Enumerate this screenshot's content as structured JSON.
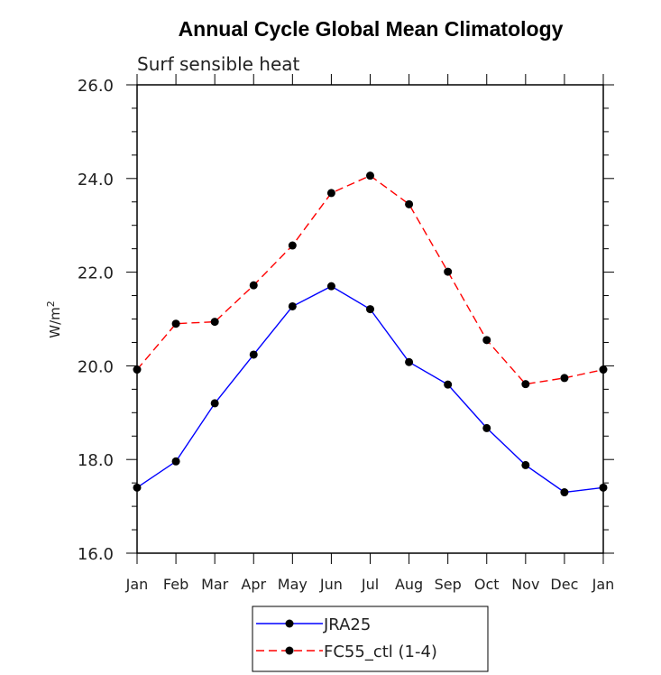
{
  "chart_data": {
    "type": "line",
    "title": "Annual Cycle Global Mean Climatology",
    "subtitle": "Surf sensible heat",
    "ylabel": "W/m",
    "ylabel_superscript": "2",
    "xlabel": "",
    "ylim": [
      16.0,
      26.0
    ],
    "y_ticks": [
      "16.0",
      "18.0",
      "20.0",
      "22.0",
      "24.0",
      "26.0"
    ],
    "categories": [
      "Jan",
      "Feb",
      "Mar",
      "Apr",
      "May",
      "Jun",
      "Jul",
      "Aug",
      "Sep",
      "Oct",
      "Nov",
      "Dec",
      "Jan"
    ],
    "grid": false,
    "legend_position": "bottom-center",
    "series": [
      {
        "name": "JRA25",
        "color": "#0000ff",
        "line_style": "solid",
        "marker": "circle",
        "values": [
          17.4,
          17.96,
          19.2,
          20.24,
          21.27,
          21.7,
          21.21,
          20.08,
          19.6,
          18.67,
          17.88,
          17.3,
          17.4
        ]
      },
      {
        "name": "FC55_ctl (1-4)",
        "color": "#ff0000",
        "line_style": "dashed",
        "marker": "circle",
        "values": [
          19.92,
          20.9,
          20.94,
          21.72,
          22.57,
          23.69,
          24.06,
          23.45,
          22.01,
          20.55,
          19.61,
          19.74,
          19.92
        ]
      }
    ]
  }
}
